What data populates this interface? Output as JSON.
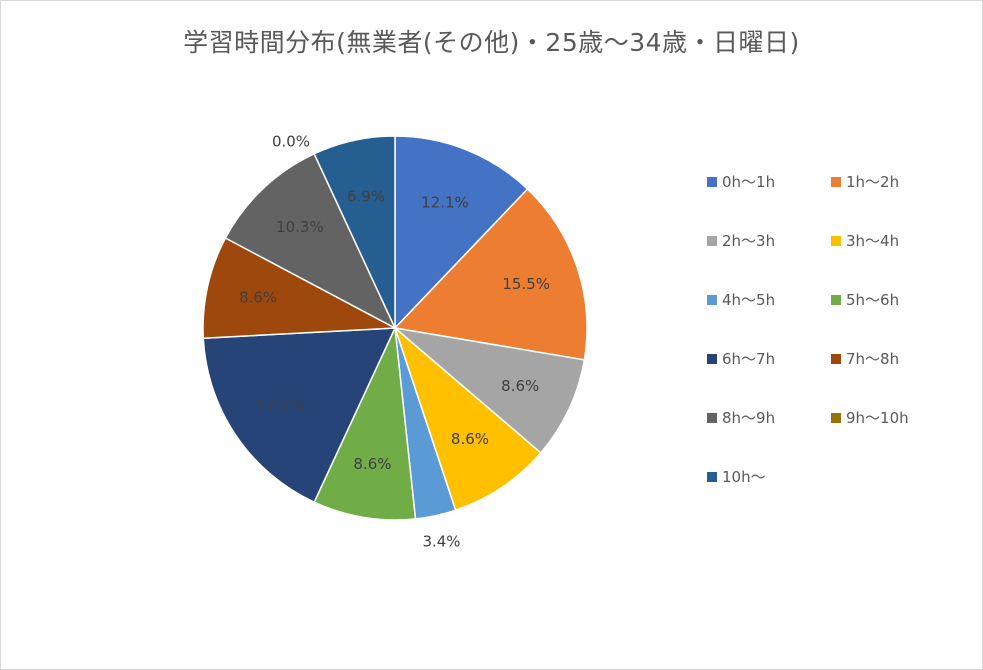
{
  "chart_data": {
    "type": "pie",
    "title": "学習時間分布(無業者(その他)・25歳～34歳・日曜日)",
    "legend_position": "right",
    "categories": [
      "0h～1h",
      "1h～2h",
      "2h～3h",
      "3h～4h",
      "4h～5h",
      "5h～6h",
      "6h～7h",
      "7h～8h",
      "8h～9h",
      "9h～10h",
      "10h～"
    ],
    "values": [
      12.1,
      15.5,
      8.6,
      8.6,
      3.4,
      8.6,
      17.2,
      8.6,
      10.3,
      0.0,
      6.9
    ],
    "labels": [
      "12.1%",
      "15.5%",
      "8.6%",
      "8.6%",
      "3.4%",
      "8.6%",
      "17.2%",
      "8.6%",
      "10.3%",
      "0.0%",
      "6.9%"
    ],
    "colors": [
      "#4472C4",
      "#ED7D31",
      "#A5A5A5",
      "#FFC000",
      "#5B9BD5",
      "#70AD47",
      "#264478",
      "#9E480E",
      "#636363",
      "#997300",
      "#255E91"
    ]
  }
}
